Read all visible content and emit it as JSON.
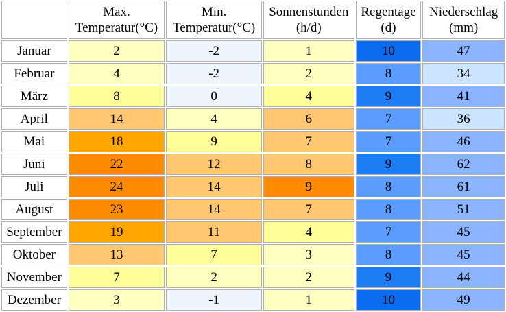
{
  "headers": [
    {
      "line1": "Max.",
      "line2": "Temperatur(°C)"
    },
    {
      "line1": "Min.",
      "line2": "Temperatur(°C)"
    },
    {
      "line1": "Sonnenstunden",
      "line2": "(h/d)"
    },
    {
      "line1": "Regentage",
      "line2": "(d)"
    },
    {
      "line1": "Niederschlag",
      "line2": "(mm)"
    }
  ],
  "rows": [
    {
      "month": "Januar",
      "values": [
        "2",
        "-2",
        "1",
        "10",
        "47"
      ],
      "colors": [
        "#ffffc0",
        "#eef5ff",
        "#ffffc0",
        "#0a6cf0",
        "#8ab4ff"
      ]
    },
    {
      "month": "Februar",
      "values": [
        "4",
        "-2",
        "2",
        "8",
        "34"
      ],
      "colors": [
        "#ffffc0",
        "#eef5ff",
        "#ffffc0",
        "#5a9cff",
        "#cce4ff"
      ]
    },
    {
      "month": "März",
      "values": [
        "8",
        "0",
        "4",
        "9",
        "41"
      ],
      "colors": [
        "#ffff9a",
        "#eef5ff",
        "#ffff9a",
        "#1e7cf5",
        "#8ab4ff"
      ]
    },
    {
      "month": "April",
      "values": [
        "14",
        "4",
        "6",
        "7",
        "36"
      ],
      "colors": [
        "#ffc870",
        "#ffffc0",
        "#ffc870",
        "#5a9cff",
        "#cce4ff"
      ]
    },
    {
      "month": "Mai",
      "values": [
        "18",
        "9",
        "7",
        "7",
        "46"
      ],
      "colors": [
        "#ffa500",
        "#ffff9a",
        "#ffc870",
        "#5a9cff",
        "#8ab4ff"
      ]
    },
    {
      "month": "Juni",
      "values": [
        "22",
        "12",
        "8",
        "9",
        "62"
      ],
      "colors": [
        "#ff8c00",
        "#ffc870",
        "#ffc870",
        "#1e7cf5",
        "#8ab4ff"
      ]
    },
    {
      "month": "Juli",
      "values": [
        "24",
        "14",
        "9",
        "8",
        "61"
      ],
      "colors": [
        "#ff8c00",
        "#ffc870",
        "#ff8c00",
        "#5a9cff",
        "#8ab4ff"
      ]
    },
    {
      "month": "August",
      "values": [
        "23",
        "14",
        "7",
        "8",
        "51"
      ],
      "colors": [
        "#ff8c00",
        "#ffc870",
        "#ffc870",
        "#5a9cff",
        "#8ab4ff"
      ]
    },
    {
      "month": "September",
      "values": [
        "19",
        "11",
        "4",
        "7",
        "45"
      ],
      "colors": [
        "#ffa500",
        "#ffc870",
        "#ffff9a",
        "#5a9cff",
        "#8ab4ff"
      ]
    },
    {
      "month": "Oktober",
      "values": [
        "13",
        "7",
        "3",
        "8",
        "45"
      ],
      "colors": [
        "#ffc870",
        "#ffff9a",
        "#ffffc0",
        "#5a9cff",
        "#8ab4ff"
      ]
    },
    {
      "month": "November",
      "values": [
        "7",
        "2",
        "2",
        "9",
        "44"
      ],
      "colors": [
        "#ffff9a",
        "#ffffc0",
        "#ffffc0",
        "#1e7cf5",
        "#8ab4ff"
      ]
    },
    {
      "month": "Dezember",
      "values": [
        "3",
        "-1",
        "1",
        "10",
        "49"
      ],
      "colors": [
        "#ffffc0",
        "#eef5ff",
        "#ffffc0",
        "#0a6cf0",
        "#8ab4ff"
      ]
    }
  ]
}
